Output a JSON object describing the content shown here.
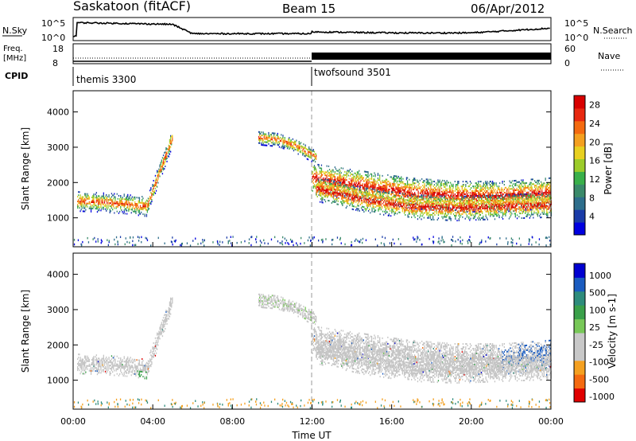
{
  "header": {
    "station": "Saskatoon (fitACF)",
    "beam": "Beam 15",
    "date": "06/Apr/2012"
  },
  "panels": {
    "nsky": {
      "label": "N.Sky",
      "tick_top": "10^5",
      "tick_bottom": "10^0",
      "right_label": "N.Search",
      "right_tick_top": "10^5",
      "right_tick_bottom": "10^0"
    },
    "freq": {
      "label_line1": "Freq.",
      "label_line2": "[MHz]",
      "tick_top": "18",
      "tick_bottom": "8",
      "right_label": "Nave",
      "right_tick_top": "60",
      "right_tick_bottom": "0"
    },
    "cpid": {
      "label": "CPID",
      "programs": [
        {
          "name": "themis 3300",
          "start_hour": 0
        },
        {
          "name": "twofsound 3501",
          "start_hour": 12
        }
      ]
    }
  },
  "colors": {
    "power": [
      "#0000e0",
      "#1a3ca8",
      "#2e6e8c",
      "#3a8a6a",
      "#39b04a",
      "#9ccc2a",
      "#e8d020",
      "#f4a020",
      "#f46a10",
      "#e82810",
      "#d80000"
    ],
    "velocity": [
      "#e00000",
      "#f46a10",
      "#f4a020",
      "#c8c8c8",
      "#c8c8c8",
      "#78c858",
      "#3aa04a",
      "#2e8c7c",
      "#1a5cc0",
      "#0000d0"
    ],
    "ground_scatter": "#c4c4c4"
  },
  "chart_data": [
    {
      "name": "power",
      "type": "heatmap",
      "xlabel": "",
      "ylabel": "Slant Range [km]",
      "xlim_hours": [
        0,
        24
      ],
      "ylim_km": [
        180,
        4600
      ],
      "yticks": [
        1000,
        2000,
        3000,
        4000
      ],
      "colorbar": {
        "label": "Power [dB]",
        "range": [
          0,
          30
        ],
        "ticks": [
          4,
          8,
          12,
          16,
          20,
          24,
          28
        ]
      }
    },
    {
      "name": "velocity",
      "type": "heatmap",
      "xlabel": "Time UT",
      "ylabel": "Slant Range [km]",
      "xlim_hours": [
        0,
        24
      ],
      "ylim_km": [
        180,
        4600
      ],
      "yticks": [
        1000,
        2000,
        3000,
        4000
      ],
      "xticks": [
        "00:00",
        "04:00",
        "08:00",
        "12:00",
        "16:00",
        "20:00",
        "00:00"
      ],
      "colorbar": {
        "label": "Velocity [m s-1]",
        "ticks": [
          "1000",
          "500",
          "100",
          "25",
          "-25",
          "-100",
          "-500",
          "-1000"
        ]
      },
      "echo_bands": [
        {
          "start_hour": 0.2,
          "end_hour": 3.7,
          "center_km": [
            1450,
            1420,
            1380,
            1300
          ],
          "width_km": 280
        },
        {
          "start_hour": 3.7,
          "end_hour": 5.0,
          "center_km": [
            1300,
            2300,
            3300
          ],
          "width_km": 250
        },
        {
          "start_hour": 9.3,
          "end_hour": 12.2,
          "center_km": [
            3250,
            3200,
            3000,
            2700
          ],
          "width_km": 200
        },
        {
          "start_hour": 12.0,
          "end_hour": 24.0,
          "center_km": [
            2100,
            1900,
            1700,
            1600,
            1600,
            1700
          ],
          "width_km": 450
        },
        {
          "start_hour": 12.2,
          "end_hour": 24.0,
          "center_km": [
            1800,
            1500,
            1300,
            1250,
            1300,
            1350
          ],
          "width_km": 350
        }
      ]
    }
  ]
}
